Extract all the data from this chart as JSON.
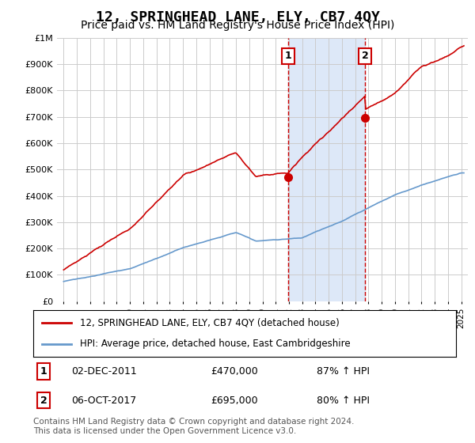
{
  "title": "12, SPRINGHEAD LANE, ELY, CB7 4QY",
  "subtitle": "Price paid vs. HM Land Registry's House Price Index (HPI)",
  "title_fontsize": 13,
  "subtitle_fontsize": 10,
  "ylim": [
    0,
    1000000
  ],
  "yticks": [
    0,
    100000,
    200000,
    300000,
    400000,
    500000,
    600000,
    700000,
    800000,
    900000,
    1000000
  ],
  "ytick_labels": [
    "£0",
    "£100K",
    "£200K",
    "£300K",
    "£400K",
    "£500K",
    "£600K",
    "£700K",
    "£800K",
    "£900K",
    "£1M"
  ],
  "x_start_year": 1995,
  "x_end_year": 2025,
  "sale1": {
    "date_label": "02-DEC-2011",
    "year": 2011.92,
    "price": 470000,
    "label": "1",
    "hpi_pct": "87% ↑ HPI"
  },
  "sale2": {
    "date_label": "06-OCT-2017",
    "year": 2017.75,
    "price": 695000,
    "label": "2",
    "hpi_pct": "80% ↑ HPI"
  },
  "red_line_color": "#cc0000",
  "blue_line_color": "#6699cc",
  "vline_color": "#cc0000",
  "vline_style": "--",
  "sale_marker_color": "#cc0000",
  "legend_label_red": "12, SPRINGHEAD LANE, ELY, CB7 4QY (detached house)",
  "legend_label_blue": "HPI: Average price, detached house, East Cambridgeshire",
  "footnote": "Contains HM Land Registry data © Crown copyright and database right 2024.\nThis data is licensed under the Open Government Licence v3.0.",
  "shaded_color": "#dde8f8",
  "plot_bg_color": "#ffffff",
  "grid_color": "#cccccc"
}
